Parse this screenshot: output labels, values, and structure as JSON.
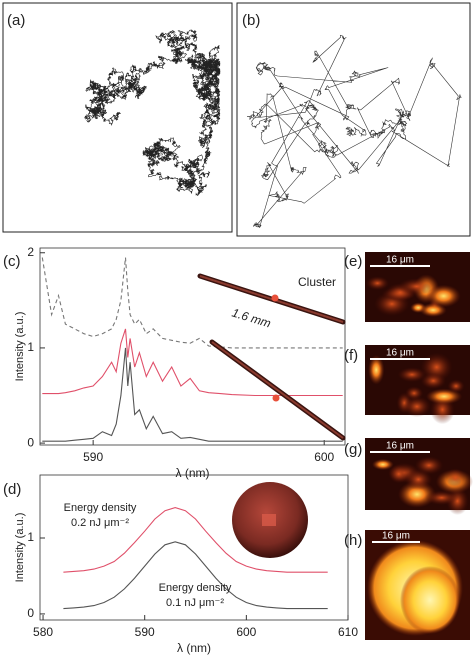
{
  "panels": [
    {
      "label": "(a)"
    },
    {
      "label": "(b)"
    }
  ],
  "chart_data": [
    {
      "type": "line",
      "panel_label": "(c)",
      "x_label": "λ (nm)",
      "y_label": "Intensity (a.u.)",
      "annotations": [
        "Cluster",
        "1.6 mm"
      ],
      "x": [
        587.8,
        588.2,
        588.5,
        588.8,
        589.2,
        589.6,
        590.0,
        590.4,
        590.8,
        591.0,
        591.2,
        591.4,
        591.5,
        591.6,
        591.8,
        592.0,
        592.3,
        592.6,
        593.0,
        593.4,
        593.8,
        594.2,
        594.6,
        595.0,
        595.5,
        596.0,
        597.0,
        598.0,
        599.0,
        600.0,
        600.8
      ],
      "series": [
        {
          "color": "#777777",
          "style": "dashed",
          "values": [
            1.95,
            1.35,
            1.55,
            1.25,
            1.2,
            1.15,
            1.12,
            1.15,
            1.2,
            1.3,
            1.5,
            1.95,
            1.6,
            1.35,
            1.25,
            1.3,
            1.15,
            1.2,
            1.1,
            1.08,
            1.06,
            1.05,
            1.1,
            1.02,
            1.01,
            1.0,
            1.0,
            1.0,
            1.0,
            1.0,
            1.0
          ]
        },
        {
          "color": "#e0506a",
          "style": "solid",
          "values": [
            0.52,
            0.52,
            0.52,
            0.53,
            0.55,
            0.58,
            0.6,
            0.7,
            0.85,
            0.75,
            1.05,
            1.2,
            0.9,
            1.1,
            0.8,
            0.95,
            0.7,
            0.85,
            0.65,
            0.8,
            0.6,
            0.68,
            0.55,
            0.53,
            0.52,
            0.51,
            0.5,
            0.5,
            0.5,
            0.5,
            0.5
          ]
        },
        {
          "color": "#555555",
          "style": "solid",
          "values": [
            0.02,
            0.02,
            0.02,
            0.02,
            0.03,
            0.04,
            0.05,
            0.12,
            0.08,
            0.2,
            0.5,
            1.0,
            0.6,
            0.85,
            0.3,
            0.35,
            0.15,
            0.28,
            0.1,
            0.12,
            0.05,
            0.06,
            0.04,
            0.02,
            0.02,
            0.02,
            0.02,
            0.02,
            0.02,
            0.02,
            0.02
          ]
        }
      ],
      "xlim": [
        587.7,
        600.9
      ],
      "ylim": [
        -0.02,
        2.05
      ],
      "xticks": [
        590,
        600
      ],
      "yticks": [
        0,
        1,
        2
      ]
    },
    {
      "type": "line",
      "panel_label": "(d)",
      "x_label": "λ (nm)",
      "y_label": "Intensity (a.u.)",
      "annotations": [
        "Energy density",
        "0.2 nJ μm⁻²",
        "Energy density",
        "0.1 nJ μm⁻²"
      ],
      "x": [
        582,
        583,
        584,
        585,
        586,
        587,
        588,
        589,
        590,
        591,
        592,
        593,
        594,
        595,
        596,
        597,
        598,
        599,
        600,
        601,
        602,
        603,
        604,
        605,
        606,
        607,
        608
      ],
      "series": [
        {
          "color": "#e0506a",
          "style": "solid",
          "values": [
            0.55,
            0.56,
            0.57,
            0.59,
            0.63,
            0.69,
            0.8,
            0.94,
            1.09,
            1.25,
            1.36,
            1.4,
            1.36,
            1.25,
            1.09,
            0.94,
            0.8,
            0.69,
            0.63,
            0.59,
            0.57,
            0.56,
            0.55,
            0.55,
            0.55,
            0.55,
            0.55
          ]
        },
        {
          "color": "#555555",
          "style": "solid",
          "values": [
            0.07,
            0.08,
            0.09,
            0.11,
            0.15,
            0.22,
            0.33,
            0.47,
            0.63,
            0.79,
            0.91,
            0.95,
            0.91,
            0.79,
            0.63,
            0.47,
            0.33,
            0.22,
            0.15,
            0.11,
            0.09,
            0.08,
            0.07,
            0.07,
            0.07,
            0.07,
            0.07
          ]
        }
      ],
      "xlim": [
        579.7,
        610
      ],
      "ylim": [
        -0.08,
        1.83
      ],
      "xticks": [
        580,
        590,
        600,
        610
      ],
      "yticks": [
        0,
        1
      ]
    }
  ],
  "images": [
    {
      "label": "(e)",
      "scale": "16 μm"
    },
    {
      "label": "(f)",
      "scale": "16 μm"
    },
    {
      "label": "(g)",
      "scale": "16 μm"
    },
    {
      "label": "(h)",
      "scale": "16 μm"
    }
  ]
}
